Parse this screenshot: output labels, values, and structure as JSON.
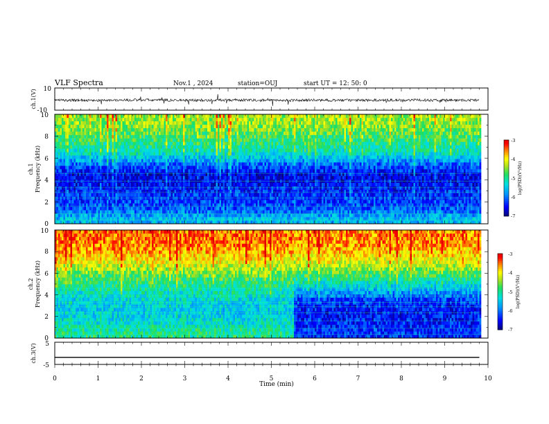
{
  "header": {
    "title": "VLF Spectra",
    "date": "Nov.1  , 2024",
    "station": "station=OUJ",
    "start_ut": "start  UT  =   12: 50: 0"
  },
  "colors": {
    "spectrogram_scale": [
      "#08087a",
      "#0000ff",
      "#0090ff",
      "#00e0e0",
      "#20e060",
      "#a8e020",
      "#ffff00",
      "#ff8000",
      "#ff0000",
      "#e00000"
    ],
    "trace": "#000000"
  },
  "chart_data": [
    {
      "type": "line",
      "title": "",
      "ylabel": "ch.1(V)",
      "ylim": [
        -10,
        10
      ],
      "yticks": [
        "10",
        "-10"
      ],
      "x": [
        0,
        1,
        2,
        3,
        4,
        5,
        6,
        7,
        8,
        9,
        9.8
      ],
      "series": [
        {
          "values": [
            -1,
            -1.2,
            -0.8,
            -1.1,
            -0.9,
            -1.2,
            -1.0,
            -1.1,
            -0.9,
            -1.0,
            -1.0
          ]
        }
      ]
    },
    {
      "type": "heatmap",
      "ylabel_line1": "ch.1",
      "ylabel_line2": "Frequency (kHz)",
      "ylim": [
        0,
        10
      ],
      "yticks": [
        "0",
        "2",
        "4",
        "6",
        "8",
        "10"
      ],
      "data_end_min": 9.8,
      "level_by_freq_khz": [
        [
          0.5,
          -5.6
        ],
        [
          1.5,
          -6.2
        ],
        [
          2.5,
          -6.3
        ],
        [
          3.5,
          -6.5
        ],
        [
          4.5,
          -6.6
        ],
        [
          5.5,
          -6.0
        ],
        [
          6.5,
          -5.2
        ],
        [
          7.5,
          -4.9
        ],
        [
          8.5,
          -4.6
        ],
        [
          9.5,
          -4.4
        ]
      ],
      "colorbar": {
        "label": "log(PSD)(V²/Hz)",
        "ticks": [
          "-3",
          "-4",
          "-5",
          "-6",
          "-7"
        ],
        "range": [
          -7,
          -3
        ]
      }
    },
    {
      "type": "heatmap",
      "ylabel_line1": "ch.2",
      "ylabel_line2": "Frequency (kHz)",
      "ylim": [
        0,
        10
      ],
      "yticks": [
        "0",
        "2",
        "4",
        "6",
        "8",
        "10"
      ],
      "data_end_min": 9.8,
      "segments": [
        {
          "x_range_min": [
            0,
            5.5
          ],
          "level_by_freq_khz": [
            [
              0.5,
              -5.0
            ],
            [
              1.5,
              -5.3
            ],
            [
              2.5,
              -5.5
            ],
            [
              3.5,
              -5.4
            ],
            [
              4.5,
              -5.1
            ],
            [
              5.5,
              -4.8
            ],
            [
              6.5,
              -4.3
            ],
            [
              7.5,
              -3.9
            ],
            [
              8.5,
              -3.6
            ],
            [
              9.5,
              -3.5
            ]
          ]
        },
        {
          "x_range_min": [
            5.5,
            9.8
          ],
          "level_by_freq_khz": [
            [
              0.5,
              -6.3
            ],
            [
              1.5,
              -6.4
            ],
            [
              2.5,
              -6.5
            ],
            [
              3.5,
              -6.3
            ],
            [
              4.5,
              -5.6
            ],
            [
              5.5,
              -5.0
            ],
            [
              6.5,
              -4.4
            ],
            [
              7.5,
              -4.0
            ],
            [
              8.5,
              -3.7
            ],
            [
              9.5,
              -3.6
            ]
          ]
        }
      ],
      "colorbar": {
        "label": "log(PSD)(V²/Hz)",
        "ticks": [
          "-3",
          "-4",
          "-5",
          "-6",
          "-7"
        ],
        "range": [
          -7,
          -3
        ]
      }
    },
    {
      "type": "line",
      "ylabel": "ch.3(V)",
      "ylim": [
        -5,
        5
      ],
      "yticks": [
        "5",
        "-5"
      ],
      "x": [
        0,
        9.8
      ],
      "series": [
        {
          "values": [
            -1.8,
            -1.8
          ]
        }
      ]
    }
  ],
  "x_axis": {
    "label": "Time  (min)",
    "range": [
      0,
      10
    ],
    "ticks": [
      "0",
      "1",
      "2",
      "3",
      "4",
      "5",
      "6",
      "7",
      "8",
      "9",
      "10"
    ]
  }
}
